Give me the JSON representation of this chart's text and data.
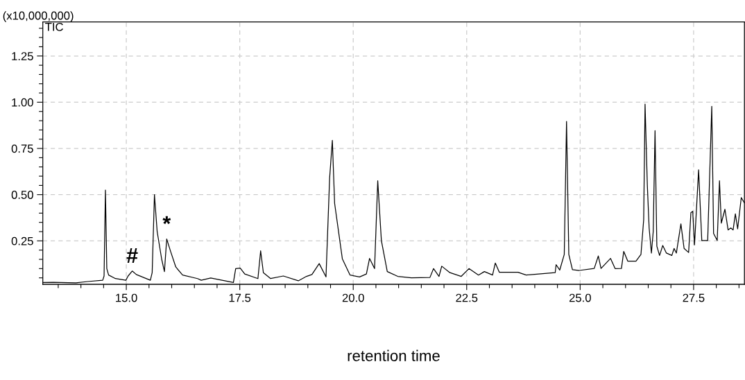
{
  "chart_data": {
    "type": "line",
    "xlabel": "retention time",
    "annotations": [
      "(x10,000,000)",
      "TIC",
      {
        "text": "#",
        "x": 15.13,
        "y": 0.087
      },
      {
        "text": "*",
        "x": 15.89,
        "y": 0.26
      }
    ],
    "xlim": [
      13.16,
      28.62
    ],
    "ylim": [
      0.015,
      1.434
    ],
    "xticks": [
      {
        "value": 15,
        "label": "15.0"
      },
      {
        "value": 17.5,
        "label": "17.5"
      },
      {
        "value": 20,
        "label": "20.0"
      },
      {
        "value": 22.5,
        "label": "22.5"
      },
      {
        "value": 25,
        "label": "25.0"
      },
      {
        "value": 27.5,
        "label": "27.5"
      }
    ],
    "yticks": [
      0.25,
      {
        "value": 0.5,
        "label": "0.50"
      },
      {
        "value": 0.75,
        "label": "0.75"
      },
      {
        "value": 1,
        "label": "1.00"
      },
      1.25
    ],
    "grid": true,
    "marker": "none",
    "line_style": "solid",
    "series": [
      {
        "color": "#000000",
        "x": [
          13.16,
          13.39,
          13.89,
          14.15,
          14.48,
          14.51,
          14.54,
          14.57,
          14.61,
          14.76,
          14.99,
          15.04,
          15.13,
          15.22,
          15.53,
          15.57,
          15.62,
          15.68,
          15.78,
          15.84,
          15.89,
          15.98,
          16.09,
          16.24,
          16.57,
          16.65,
          16.86,
          17.36,
          17.41,
          17.51,
          17.61,
          17.9,
          17.96,
          18.02,
          18.18,
          18.46,
          18.79,
          18.97,
          19.09,
          19.25,
          19.4,
          19.48,
          19.54,
          19.59,
          19.76,
          19.93,
          20.14,
          20.29,
          20.36,
          20.47,
          20.54,
          20.62,
          20.75,
          20.98,
          21.28,
          21.69,
          21.77,
          21.89,
          21.95,
          22.13,
          22.38,
          22.55,
          22.76,
          22.89,
          23.07,
          23.13,
          23.22,
          23.63,
          23.81,
          24.45,
          24.47,
          24.55,
          24.65,
          24.7,
          24.75,
          24.83,
          24.98,
          25.31,
          25.4,
          25.46,
          25.67,
          25.77,
          25.91,
          25.96,
          26.05,
          26.23,
          26.34,
          26.4,
          26.43,
          26.48,
          26.52,
          26.57,
          26.61,
          26.65,
          26.69,
          26.75,
          26.82,
          26.9,
          27.02,
          27.07,
          27.12,
          27.22,
          27.29,
          27.39,
          27.44,
          27.48,
          27.52,
          27.61,
          27.68,
          27.81,
          27.9,
          27.94,
          28.02,
          28.07,
          28.11,
          28.19,
          28.26,
          28.32,
          28.37,
          28.42,
          28.47,
          28.55,
          28.62
        ],
        "values": [
          0.025,
          0.026,
          0.023,
          0.03,
          0.037,
          0.06,
          0.525,
          0.1,
          0.065,
          0.046,
          0.037,
          0.06,
          0.087,
          0.068,
          0.037,
          0.078,
          0.5,
          0.3,
          0.15,
          0.084,
          0.26,
          0.19,
          0.109,
          0.065,
          0.046,
          0.037,
          0.049,
          0.025,
          0.1,
          0.103,
          0.071,
          0.046,
          0.196,
          0.078,
          0.046,
          0.06,
          0.034,
          0.058,
          0.068,
          0.127,
          0.055,
          0.59,
          0.794,
          0.453,
          0.153,
          0.065,
          0.055,
          0.071,
          0.155,
          0.1,
          0.575,
          0.252,
          0.084,
          0.058,
          0.05,
          0.052,
          0.1,
          0.058,
          0.113,
          0.078,
          0.058,
          0.1,
          0.065,
          0.084,
          0.065,
          0.13,
          0.08,
          0.08,
          0.065,
          0.078,
          0.121,
          0.092,
          0.177,
          0.896,
          0.177,
          0.094,
          0.09,
          0.101,
          0.168,
          0.101,
          0.155,
          0.1,
          0.101,
          0.193,
          0.14,
          0.14,
          0.177,
          0.365,
          0.99,
          0.552,
          0.32,
          0.184,
          0.3,
          0.846,
          0.221,
          0.171,
          0.225,
          0.184,
          0.171,
          0.209,
          0.184,
          0.342,
          0.209,
          0.187,
          0.402,
          0.41,
          0.228,
          0.634,
          0.252,
          0.252,
          0.978,
          0.29,
          0.252,
          0.575,
          0.346,
          0.421,
          0.309,
          0.32,
          0.309,
          0.396,
          0.315,
          0.484,
          0.455
        ]
      }
    ]
  }
}
